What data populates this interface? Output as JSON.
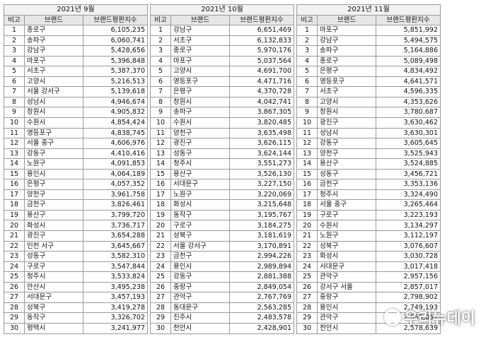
{
  "columns": {
    "rank": "비고",
    "brand": "브랜드",
    "value": "브랜드평판지수"
  },
  "watermark": "우리뉴데이",
  "months": [
    {
      "title": "2021년 9월",
      "rows": [
        {
          "rank": "1",
          "brand": "종로구",
          "value": "6,105,235"
        },
        {
          "rank": "2",
          "brand": "송파구",
          "value": "6,060,741"
        },
        {
          "rank": "3",
          "brand": "강남구",
          "value": "5,428,656"
        },
        {
          "rank": "4",
          "brand": "마포구",
          "value": "5,396,848"
        },
        {
          "rank": "5",
          "brand": "서초구",
          "value": "5,387,370"
        },
        {
          "rank": "6",
          "brand": "고양시",
          "value": "5,216,513"
        },
        {
          "rank": "7",
          "brand": "서울 강서구",
          "value": "5,139,618"
        },
        {
          "rank": "8",
          "brand": "성남시",
          "value": "4,946,674"
        },
        {
          "rank": "9",
          "brand": "창원시",
          "value": "4,905,832"
        },
        {
          "rank": "10",
          "brand": "수원시",
          "value": "4,854,424"
        },
        {
          "rank": "11",
          "brand": "영등포구",
          "value": "4,838,745"
        },
        {
          "rank": "12",
          "brand": "서울 중구",
          "value": "4,606,976"
        },
        {
          "rank": "13",
          "brand": "강동구",
          "value": "4,410,416"
        },
        {
          "rank": "14",
          "brand": "노원구",
          "value": "4,091,853"
        },
        {
          "rank": "15",
          "brand": "용인시",
          "value": "4,064,189"
        },
        {
          "rank": "16",
          "brand": "은평구",
          "value": "4,057,352"
        },
        {
          "rank": "17",
          "brand": "양천구",
          "value": "3,961,758"
        },
        {
          "rank": "18",
          "brand": "금천구",
          "value": "3,826,461"
        },
        {
          "rank": "19",
          "brand": "용산구",
          "value": "3,799,720"
        },
        {
          "rank": "20",
          "brand": "화성시",
          "value": "3,736,717"
        },
        {
          "rank": "21",
          "brand": "광진구",
          "value": "3,654,288"
        },
        {
          "rank": "22",
          "brand": "인천 서구",
          "value": "3,645,667"
        },
        {
          "rank": "23",
          "brand": "성동구",
          "value": "3,582,310"
        },
        {
          "rank": "24",
          "brand": "구로구",
          "value": "3,547,844"
        },
        {
          "rank": "25",
          "brand": "청주시",
          "value": "3,533,824"
        },
        {
          "rank": "26",
          "brand": "안산시",
          "value": "3,495,238"
        },
        {
          "rank": "27",
          "brand": "서대문구",
          "value": "3,457,193"
        },
        {
          "rank": "28",
          "brand": "성북구",
          "value": "3,419,278"
        },
        {
          "rank": "29",
          "brand": "동작구",
          "value": "3,326,702"
        },
        {
          "rank": "30",
          "brand": "평택시",
          "value": "3,241,977"
        }
      ]
    },
    {
      "title": "2021년 10월",
      "rows": [
        {
          "rank": "1",
          "brand": "강남구",
          "value": "6,651,469"
        },
        {
          "rank": "2",
          "brand": "서초구",
          "value": "6,132,833"
        },
        {
          "rank": "3",
          "brand": "종로구",
          "value": "5,970,176"
        },
        {
          "rank": "4",
          "brand": "마포구",
          "value": "5,037,564"
        },
        {
          "rank": "5",
          "brand": "고양시",
          "value": "4,691,700"
        },
        {
          "rank": "6",
          "brand": "영등포구",
          "value": "4,471,716"
        },
        {
          "rank": "7",
          "brand": "은평구",
          "value": "4,370,728"
        },
        {
          "rank": "8",
          "brand": "창원시",
          "value": "4,042,741"
        },
        {
          "rank": "9",
          "brand": "송파구",
          "value": "3,867,305"
        },
        {
          "rank": "10",
          "brand": "수원시",
          "value": "3,820,485"
        },
        {
          "rank": "11",
          "brand": "양천구",
          "value": "3,635,498"
        },
        {
          "rank": "12",
          "brand": "광진구",
          "value": "3,626,115"
        },
        {
          "rank": "13",
          "brand": "성동구",
          "value": "3,624,144"
        },
        {
          "rank": "14",
          "brand": "청주시",
          "value": "3,551,273"
        },
        {
          "rank": "15",
          "brand": "용산구",
          "value": "3,526,130"
        },
        {
          "rank": "16",
          "brand": "서대문구",
          "value": "3,227,150"
        },
        {
          "rank": "17",
          "brand": "노원구",
          "value": "3,220,069"
        },
        {
          "rank": "18",
          "brand": "화성시",
          "value": "3,215,648"
        },
        {
          "rank": "19",
          "brand": "동작구",
          "value": "3,195,767"
        },
        {
          "rank": "20",
          "brand": "구로구",
          "value": "3,184,275"
        },
        {
          "rank": "21",
          "brand": "성북구",
          "value": "3,181,619"
        },
        {
          "rank": "22",
          "brand": "서울 강서구",
          "value": "3,170,891"
        },
        {
          "rank": "23",
          "brand": "금천구",
          "value": "2,994,226"
        },
        {
          "rank": "24",
          "brand": "용인시",
          "value": "2,989,894"
        },
        {
          "rank": "25",
          "brand": "강동구",
          "value": "2,881,388"
        },
        {
          "rank": "26",
          "brand": "중랑구",
          "value": "2,849,054"
        },
        {
          "rank": "27",
          "brand": "관악구",
          "value": "2,767,769"
        },
        {
          "rank": "28",
          "brand": "동대문구",
          "value": "2,563,285"
        },
        {
          "rank": "29",
          "brand": "진주시",
          "value": "2,483,578"
        },
        {
          "rank": "30",
          "brand": "천안시",
          "value": "2,428,901"
        }
      ]
    },
    {
      "title": "2021년 11월",
      "rows": [
        {
          "rank": "1",
          "brand": "마포구",
          "value": "5,851,992"
        },
        {
          "rank": "2",
          "brand": "강남구",
          "value": "5,494,575"
        },
        {
          "rank": "3",
          "brand": "송파구",
          "value": "5,164,886"
        },
        {
          "rank": "4",
          "brand": "종로구",
          "value": "5,089,498"
        },
        {
          "rank": "5",
          "brand": "은평구",
          "value": "4,834,492"
        },
        {
          "rank": "6",
          "brand": "영등포구",
          "value": "4,641,571"
        },
        {
          "rank": "7",
          "brand": "서초구",
          "value": "4,596,335"
        },
        {
          "rank": "8",
          "brand": "고양시",
          "value": "4,353,626"
        },
        {
          "rank": "9",
          "brand": "창원시",
          "value": "3,780,687"
        },
        {
          "rank": "10",
          "brand": "광진구",
          "value": "3,630,462"
        },
        {
          "rank": "11",
          "brand": "성남시",
          "value": "3,630,301"
        },
        {
          "rank": "12",
          "brand": "강동구",
          "value": "3,605,645"
        },
        {
          "rank": "13",
          "brand": "양천구",
          "value": "3,525,943"
        },
        {
          "rank": "14",
          "brand": "용산구",
          "value": "3,524,885"
        },
        {
          "rank": "15",
          "brand": "성동구",
          "value": "3,456,721"
        },
        {
          "rank": "16",
          "brand": "금천구",
          "value": "3,353,136"
        },
        {
          "rank": "17",
          "brand": "청주시",
          "value": "3,324,490"
        },
        {
          "rank": "18",
          "brand": "서울 중구",
          "value": "3,265,464"
        },
        {
          "rank": "19",
          "brand": "구로구",
          "value": "3,223,193"
        },
        {
          "rank": "20",
          "brand": "수원시",
          "value": "3,134,297"
        },
        {
          "rank": "21",
          "brand": "노원구",
          "value": "3,112,197"
        },
        {
          "rank": "22",
          "brand": "성북구",
          "value": "3,076,607"
        },
        {
          "rank": "23",
          "brand": "화성시",
          "value": "3,030,728"
        },
        {
          "rank": "24",
          "brand": "서대문구",
          "value": "3,017,418"
        },
        {
          "rank": "25",
          "brand": "관악구",
          "value": "2,957,156"
        },
        {
          "rank": "26",
          "brand": "강서구 서울",
          "value": "2,857,017"
        },
        {
          "rank": "27",
          "brand": "중랑구",
          "value": "2,798,902"
        },
        {
          "rank": "28",
          "brand": "용인시",
          "value": "2,749,193"
        },
        {
          "rank": "29",
          "brand": "관악구",
          "value": "2,655,061"
        },
        {
          "rank": "30",
          "brand": "천안시",
          "value": "2,578,639"
        }
      ]
    }
  ]
}
